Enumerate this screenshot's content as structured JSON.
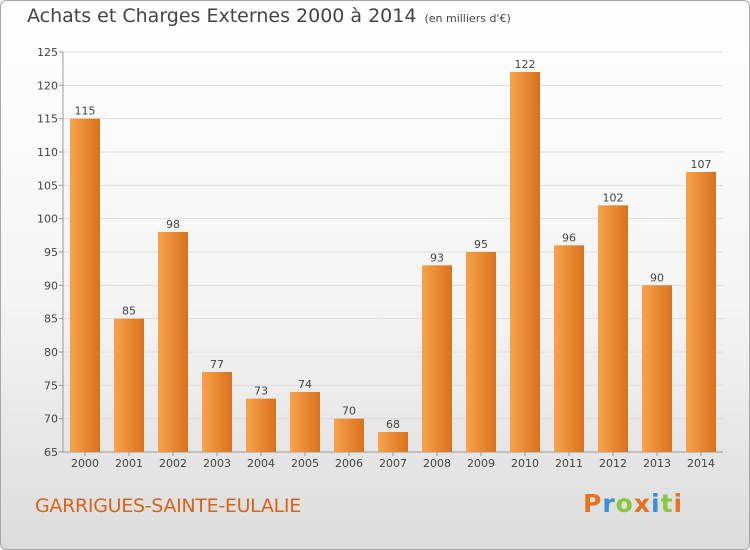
{
  "title": "Achats et Charges Externes 2000 à 2014",
  "subtitle": "(en milliers d'€)",
  "location": "GARRIGUES-SAINTE-EULALIE",
  "logo": {
    "text": "Proxiti",
    "letters": [
      "P",
      "r",
      "o",
      "x",
      "i",
      "t",
      "i"
    ],
    "colors": [
      "#e8731e",
      "#3a8fd6",
      "#8cc63f",
      "#e8731e",
      "#3a8fd6",
      "#8cc63f",
      "#e8731e"
    ]
  },
  "colors": {
    "bar_light": "#f6a34e",
    "bar_dark": "#d9711c",
    "town_text": "#d8641c"
  },
  "chart_data": {
    "type": "bar",
    "categories": [
      "2000",
      "2001",
      "2002",
      "2003",
      "2004",
      "2005",
      "2006",
      "2007",
      "2008",
      "2009",
      "2010",
      "2011",
      "2012",
      "2013",
      "2014"
    ],
    "values": [
      115,
      85,
      98,
      77,
      73,
      74,
      70,
      68,
      93,
      95,
      122,
      96,
      102,
      90,
      107
    ],
    "title": "Achats et Charges Externes 2000 à 2014",
    "ylim": [
      65,
      125
    ],
    "yticks": [
      65,
      70,
      75,
      80,
      85,
      90,
      95,
      100,
      105,
      110,
      115,
      120,
      125
    ],
    "grid": true,
    "legend": "none"
  }
}
